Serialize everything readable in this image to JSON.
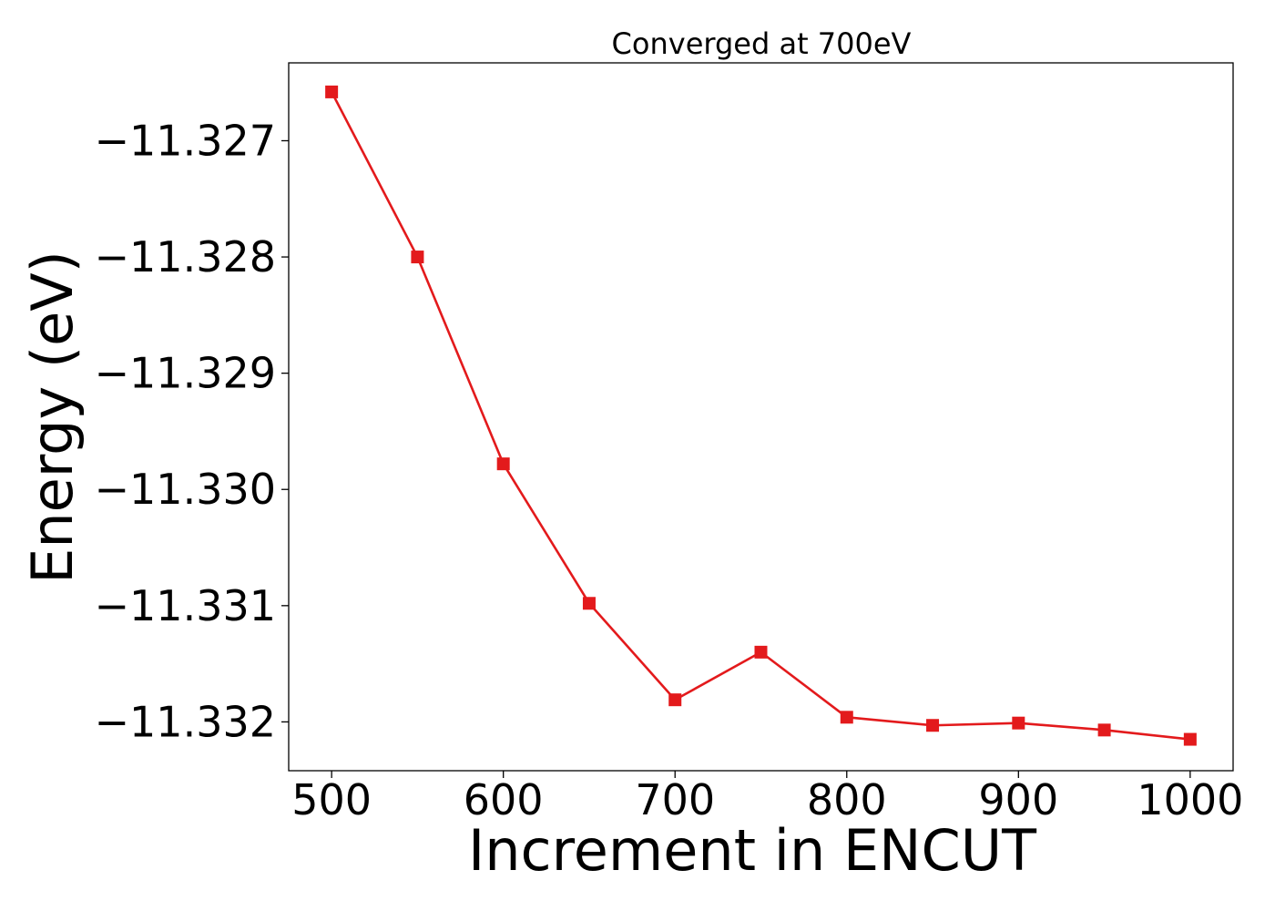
{
  "chart_data": {
    "type": "line",
    "title": "Converged at 700eV",
    "xlabel": "Increment in ENCUT",
    "ylabel": "Energy (eV)",
    "xlim": [
      475,
      1025
    ],
    "ylim": [
      -11.33242,
      -11.32633
    ],
    "xticks": [
      500,
      600,
      700,
      800,
      900,
      1000
    ],
    "xtick_labels": [
      "500",
      "600",
      "700",
      "800",
      "900",
      "1000"
    ],
    "yticks": [
      -11.327,
      -11.328,
      -11.329,
      -11.33,
      -11.331,
      -11.332
    ],
    "ytick_labels": [
      "−11.327",
      "−11.328",
      "−11.329",
      "−11.330",
      "−11.331",
      "−11.332"
    ],
    "grid": false,
    "series": [
      {
        "color": "#e31a1c",
        "marker": "square",
        "x": [
          500,
          550,
          600,
          650,
          700,
          750,
          800,
          850,
          900,
          950,
          1000
        ],
        "y": [
          -11.32658,
          -11.328,
          -11.32978,
          -11.33098,
          -11.33181,
          -11.3314,
          -11.33196,
          -11.33203,
          -11.33201,
          -11.33207,
          -11.33215
        ]
      }
    ]
  }
}
